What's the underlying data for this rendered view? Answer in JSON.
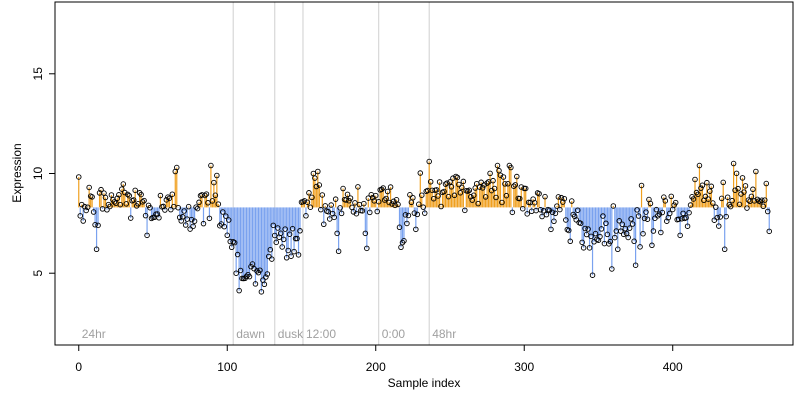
{
  "chart_data": {
    "type": "scatter",
    "title": "",
    "xlabel": "Sample index",
    "ylabel": "Expression",
    "xlim": [
      -16,
      481
    ],
    "ylim": [
      1.4,
      18.6
    ],
    "xticks": [
      0,
      100,
      200,
      300,
      400
    ],
    "yticks": [
      5,
      10,
      15
    ],
    "grid": false,
    "legend": "none",
    "baseline": 8.3,
    "colors": {
      "above": "#f0a020",
      "below": "#7aa2ef",
      "point_stroke": "#000000",
      "point_fill": "#ffffff",
      "phase_line": "#d0d0d0",
      "phase_text": "#a0a0a0",
      "axis": "#000000"
    },
    "phases": [
      {
        "label": "24hr",
        "x": 0,
        "line": false
      },
      {
        "label": "dawn",
        "x": 104,
        "line": true
      },
      {
        "label": "dusk",
        "x": 132,
        "line": true
      },
      {
        "label": "12:00",
        "x": 151,
        "line": true
      },
      {
        "label": "0:00",
        "x": 202,
        "line": true
      },
      {
        "label": "48hr",
        "x": 236,
        "line": true
      }
    ],
    "anchors": [
      [
        0,
        8.3
      ],
      [
        10,
        8.1
      ],
      [
        20,
        8.6
      ],
      [
        30,
        8.8
      ],
      [
        40,
        8.6
      ],
      [
        50,
        8.0
      ],
      [
        60,
        8.2
      ],
      [
        70,
        8.3
      ],
      [
        80,
        7.9
      ],
      [
        90,
        8.7
      ],
      [
        98,
        8.0
      ],
      [
        104,
        6.8
      ],
      [
        107,
        5.2
      ],
      [
        115,
        5.0
      ],
      [
        125,
        5.0
      ],
      [
        132,
        6.6
      ],
      [
        140,
        6.5
      ],
      [
        147,
        6.5
      ],
      [
        151,
        8.2
      ],
      [
        158,
        9.2
      ],
      [
        166,
        8.3
      ],
      [
        180,
        8.5
      ],
      [
        190,
        8.3
      ],
      [
        202,
        8.8
      ],
      [
        212,
        8.7
      ],
      [
        218,
        7.2
      ],
      [
        224,
        8.3
      ],
      [
        236,
        9.2
      ],
      [
        250,
        9.1
      ],
      [
        260,
        9.0
      ],
      [
        275,
        9.4
      ],
      [
        285,
        9.5
      ],
      [
        293,
        9.2
      ],
      [
        303,
        8.8
      ],
      [
        320,
        8.1
      ],
      [
        335,
        7.8
      ],
      [
        343,
        6.8
      ],
      [
        350,
        6.8
      ],
      [
        360,
        7.6
      ],
      [
        370,
        7.2
      ],
      [
        380,
        7.8
      ],
      [
        390,
        7.8
      ],
      [
        400,
        8.1
      ],
      [
        410,
        8.2
      ],
      [
        418,
        8.8
      ],
      [
        425,
        8.7
      ],
      [
        435,
        8.6
      ],
      [
        445,
        8.7
      ],
      [
        455,
        9.1
      ],
      [
        465,
        8.0
      ]
    ],
    "spikes": [
      [
        7,
        9.3
      ],
      [
        12,
        6.2
      ],
      [
        13,
        7.4
      ],
      [
        46,
        6.9
      ],
      [
        65,
        10.1
      ],
      [
        66,
        10.3
      ],
      [
        89,
        10.4
      ],
      [
        93,
        9.9
      ],
      [
        103,
        6.3
      ],
      [
        131,
        7.4
      ],
      [
        158,
        10.0
      ],
      [
        161,
        10.1
      ],
      [
        175,
        6.1
      ],
      [
        193,
        7.0
      ],
      [
        217,
        6.3
      ],
      [
        227,
        7.2
      ],
      [
        236,
        10.6
      ],
      [
        282,
        10.4
      ],
      [
        290,
        10.4
      ],
      [
        291,
        10.3
      ],
      [
        318,
        7.2
      ],
      [
        331,
        6.6
      ],
      [
        346,
        4.9
      ],
      [
        363,
        6.2
      ],
      [
        375,
        5.4
      ],
      [
        379,
        9.4
      ],
      [
        386,
        6.4
      ],
      [
        405,
        6.9
      ],
      [
        415,
        9.7
      ],
      [
        418,
        10.4
      ],
      [
        435,
        6.2
      ],
      [
        441,
        10.5
      ],
      [
        456,
        10.1
      ],
      [
        465,
        7.1
      ]
    ],
    "n_points": 466,
    "noise": 0.55,
    "seed": 12345
  }
}
